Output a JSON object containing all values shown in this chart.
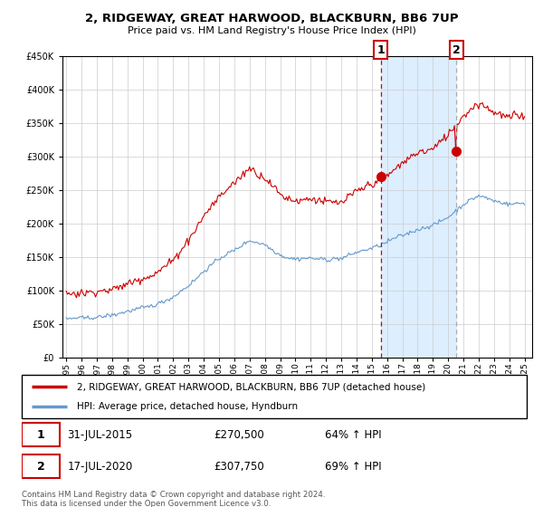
{
  "title": "2, RIDGEWAY, GREAT HARWOOD, BLACKBURN, BB6 7UP",
  "subtitle": "Price paid vs. HM Land Registry's House Price Index (HPI)",
  "legend_line1": "2, RIDGEWAY, GREAT HARWOOD, BLACKBURN, BB6 7UP (detached house)",
  "legend_line2": "HPI: Average price, detached house, Hyndburn",
  "footer": "Contains HM Land Registry data © Crown copyright and database right 2024.\nThis data is licensed under the Open Government Licence v3.0.",
  "event1_label": "1",
  "event1_date": "31-JUL-2015",
  "event1_price": "£270,500",
  "event1_pct": "64% ↑ HPI",
  "event2_label": "2",
  "event2_date": "17-JUL-2020",
  "event2_price": "£307,750",
  "event2_pct": "69% ↑ HPI",
  "red_color": "#cc0000",
  "blue_color": "#6699cc",
  "background_color": "#ffffff",
  "grid_color": "#cccccc",
  "span_color": "#ddeeff",
  "ylim": [
    0,
    450000
  ],
  "yticks": [
    0,
    50000,
    100000,
    150000,
    200000,
    250000,
    300000,
    350000,
    400000,
    450000
  ],
  "event1_x": 2015.58,
  "event1_y": 270500,
  "event2_x": 2020.54,
  "event2_y": 307750,
  "vline1_x": 2015.58,
  "vline2_x": 2020.54,
  "xlim": [
    1994.75,
    2025.5
  ],
  "xticks": [
    1995,
    1996,
    1997,
    1998,
    1999,
    2000,
    2001,
    2002,
    2003,
    2004,
    2005,
    2006,
    2007,
    2008,
    2009,
    2010,
    2011,
    2012,
    2013,
    2014,
    2015,
    2016,
    2017,
    2018,
    2019,
    2020,
    2021,
    2022,
    2023,
    2024,
    2025
  ]
}
